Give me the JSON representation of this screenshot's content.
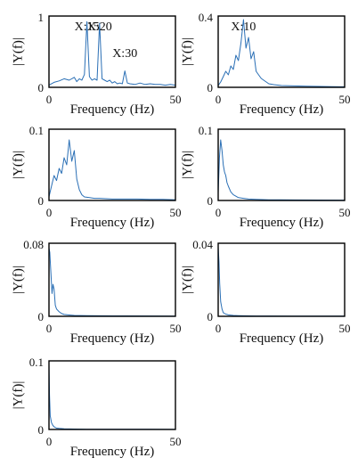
{
  "figure": {
    "x_axis_label": "Frequency (Hz)",
    "y_axis_label": "|Y(f)|"
  },
  "chart_data": [
    {
      "type": "line",
      "xlabel": "Frequency (Hz)",
      "ylabel": "|Y(f)|",
      "xlim": [
        0,
        50
      ],
      "ylim": [
        0,
        1
      ],
      "x_ticks": [
        "0",
        "50"
      ],
      "y_ticks": [
        "0",
        "1"
      ],
      "annotations": [
        {
          "text": "X:15",
          "x": 15,
          "y": 0.85
        },
        {
          "text": "X:20",
          "x": 20,
          "y": 0.85
        },
        {
          "text": "X:30",
          "x": 30,
          "y": 0.24
        }
      ],
      "series": [
        {
          "x": [
            0,
            2,
            4,
            6,
            8,
            10,
            11,
            12,
            13,
            14,
            15,
            16,
            17,
            18,
            19,
            20,
            21,
            22,
            23,
            24,
            25,
            26,
            27,
            28,
            29,
            30,
            31,
            32,
            34,
            36,
            38,
            40,
            42,
            44,
            46,
            48,
            50
          ],
          "y": [
            0.03,
            0.07,
            0.09,
            0.12,
            0.1,
            0.14,
            0.08,
            0.12,
            0.1,
            0.18,
            0.92,
            0.15,
            0.1,
            0.12,
            0.1,
            0.9,
            0.12,
            0.1,
            0.08,
            0.1,
            0.06,
            0.08,
            0.05,
            0.06,
            0.05,
            0.23,
            0.06,
            0.05,
            0.04,
            0.06,
            0.04,
            0.05,
            0.04,
            0.04,
            0.03,
            0.04,
            0.03
          ]
        }
      ]
    },
    {
      "type": "line",
      "xlabel": "Frequency (Hz)",
      "ylabel": "|Y(f)|",
      "xlim": [
        0,
        50
      ],
      "ylim": [
        0,
        0.4
      ],
      "x_ticks": [
        "0",
        "50"
      ],
      "y_ticks": [
        "0",
        "0.4"
      ],
      "annotations": [
        {
          "text": "X:10",
          "x": 10,
          "y": 0.34
        }
      ],
      "series": [
        {
          "x": [
            0,
            1,
            2,
            3,
            4,
            5,
            6,
            7,
            8,
            9,
            10,
            11,
            12,
            13,
            14,
            15,
            16,
            17,
            18,
            19,
            20,
            22,
            25,
            30,
            35,
            40,
            45,
            50
          ],
          "y": [
            0.01,
            0.03,
            0.06,
            0.09,
            0.07,
            0.12,
            0.1,
            0.18,
            0.15,
            0.25,
            0.38,
            0.22,
            0.28,
            0.16,
            0.2,
            0.09,
            0.07,
            0.05,
            0.04,
            0.03,
            0.02,
            0.015,
            0.01,
            0.008,
            0.006,
            0.005,
            0.004,
            0.003
          ]
        }
      ]
    },
    {
      "type": "line",
      "xlabel": "Frequency (Hz)",
      "ylabel": "|Y(f)|",
      "xlim": [
        0,
        50
      ],
      "ylim": [
        0,
        0.1
      ],
      "x_ticks": [
        "0",
        "50"
      ],
      "y_ticks": [
        "0",
        "0.1"
      ],
      "series": [
        {
          "x": [
            0,
            1,
            2,
            3,
            4,
            5,
            6,
            7,
            8,
            9,
            10,
            11,
            12,
            13,
            14,
            16,
            18,
            20,
            25,
            30,
            35,
            40,
            45,
            50
          ],
          "y": [
            0.005,
            0.02,
            0.035,
            0.028,
            0.045,
            0.038,
            0.06,
            0.05,
            0.085,
            0.055,
            0.07,
            0.03,
            0.015,
            0.008,
            0.005,
            0.004,
            0.003,
            0.003,
            0.002,
            0.002,
            0.002,
            0.0015,
            0.0015,
            0.001
          ]
        }
      ]
    },
    {
      "type": "line",
      "xlabel": "Frequency (Hz)",
      "ylabel": "|Y(f)|",
      "xlim": [
        0,
        50
      ],
      "ylim": [
        0,
        0.1
      ],
      "x_ticks": [
        "0",
        "50"
      ],
      "y_ticks": [
        "0",
        "0.1"
      ],
      "series": [
        {
          "x": [
            0,
            0.5,
            1,
            1.5,
            2,
            2.5,
            3,
            3.5,
            4,
            5,
            6,
            7,
            8,
            10,
            12,
            15,
            20,
            25,
            30,
            40,
            50
          ],
          "y": [
            0.01,
            0.06,
            0.085,
            0.07,
            0.05,
            0.04,
            0.035,
            0.025,
            0.02,
            0.012,
            0.008,
            0.006,
            0.004,
            0.003,
            0.002,
            0.0015,
            0.001,
            0.001,
            0.0008,
            0.0006,
            0.0005
          ]
        }
      ]
    },
    {
      "type": "line",
      "xlabel": "Frequency (Hz)",
      "ylabel": "|Y(f)|",
      "xlim": [
        0,
        50
      ],
      "ylim": [
        0,
        0.08
      ],
      "x_ticks": [
        "0",
        "50"
      ],
      "y_ticks": [
        "0",
        "0.08"
      ],
      "series": [
        {
          "x": [
            0,
            0.3,
            0.8,
            1.2,
            1.6,
            2,
            2.5,
            3,
            4,
            5,
            6,
            8,
            10,
            15,
            20,
            30,
            40,
            50
          ],
          "y": [
            0.075,
            0.07,
            0.045,
            0.025,
            0.035,
            0.03,
            0.012,
            0.008,
            0.005,
            0.003,
            0.002,
            0.0015,
            0.001,
            0.0008,
            0.0006,
            0.0005,
            0.0004,
            0.0003
          ]
        }
      ]
    },
    {
      "type": "line",
      "xlabel": "Frequency (Hz)",
      "ylabel": "|Y(f)|",
      "xlim": [
        0,
        50
      ],
      "ylim": [
        0,
        0.04
      ],
      "x_ticks": [
        "0",
        "50"
      ],
      "y_ticks": [
        "0",
        "0.04"
      ],
      "series": [
        {
          "x": [
            0,
            0.3,
            0.6,
            1,
            1.5,
            2,
            3,
            4,
            6,
            8,
            10,
            15,
            20,
            30,
            40,
            50
          ],
          "y": [
            0.038,
            0.03,
            0.018,
            0.008,
            0.004,
            0.002,
            0.0012,
            0.0008,
            0.0005,
            0.0004,
            0.0003,
            0.0002,
            0.0002,
            0.0001,
            0.0001,
            0.0001
          ]
        }
      ]
    },
    {
      "type": "line",
      "xlabel": "Frequency (Hz)",
      "ylabel": "|Y(f)|",
      "xlim": [
        0,
        50
      ],
      "ylim": [
        0,
        0.1
      ],
      "x_ticks": [
        "0",
        "50"
      ],
      "y_ticks": [
        "0",
        "0.1"
      ],
      "series": [
        {
          "x": [
            0,
            0.2,
            0.5,
            1,
            1.5,
            2,
            3,
            4,
            6,
            8,
            10,
            15,
            20,
            30,
            40,
            50
          ],
          "y": [
            0.095,
            0.05,
            0.02,
            0.01,
            0.006,
            0.004,
            0.002,
            0.0015,
            0.001,
            0.0008,
            0.0006,
            0.0004,
            0.0003,
            0.0002,
            0.0002,
            0.0001
          ]
        }
      ]
    }
  ]
}
